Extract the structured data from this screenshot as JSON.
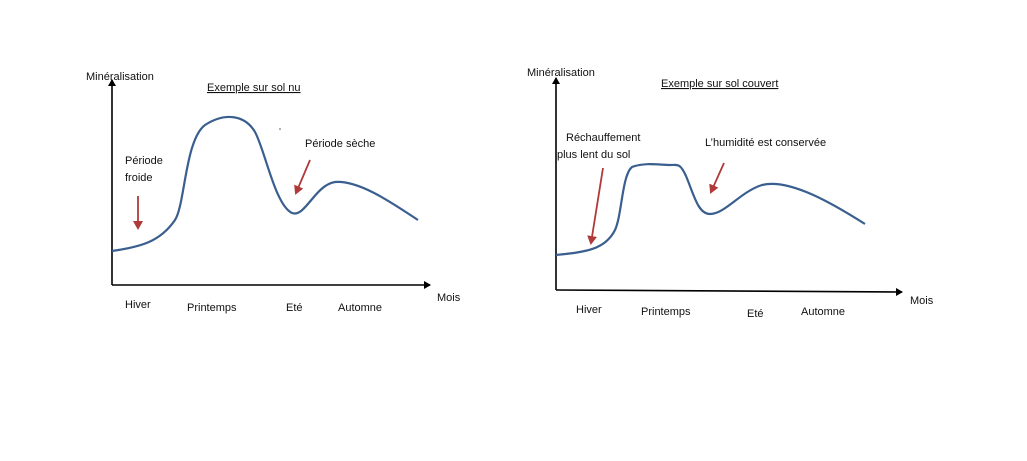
{
  "diagrams": [
    {
      "ylabel": "Minéralisation",
      "title": "Exemple sur sol nu",
      "xlabel": "Mois",
      "seasons": [
        "Hiver",
        "Printemps",
        "Eté",
        "Automne"
      ],
      "annotations": [
        {
          "lines": [
            "Période",
            "froide"
          ]
        },
        {
          "lines": [
            "Période sèche"
          ]
        }
      ]
    },
    {
      "ylabel": "Minéralisation",
      "title": "Exemple sur sol couvert",
      "xlabel": "Mois",
      "seasons": [
        "Hiver",
        "Printemps",
        "Eté",
        "Automne"
      ],
      "annotations": [
        {
          "lines": [
            "Réchauffement",
            "plus lent du sol"
          ]
        },
        {
          "lines": [
            "L’humidité est conservée"
          ]
        }
      ]
    }
  ],
  "colors": {
    "curve": "#3a5f8f",
    "arrow": "#b03a3a",
    "axis": "#000000"
  }
}
